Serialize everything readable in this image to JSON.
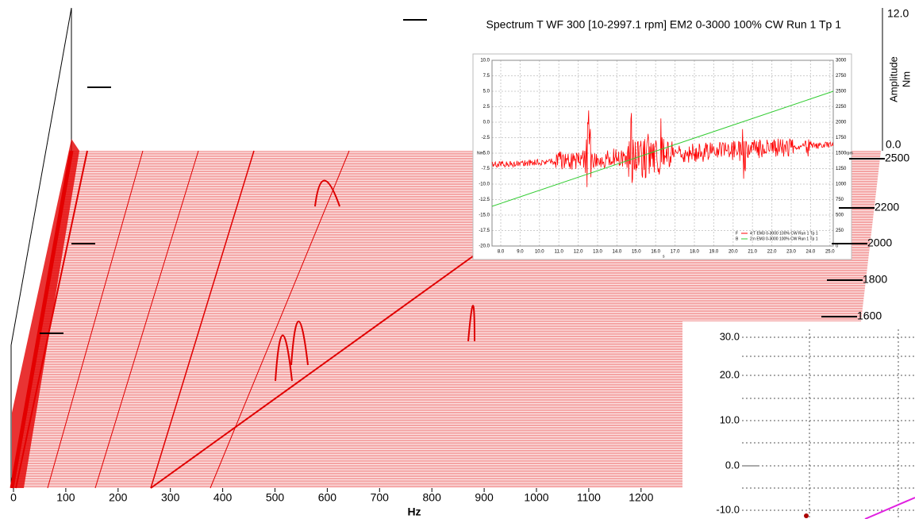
{
  "main_plot": {
    "title": "Spectrum T WF 300 [10-2997.1 rpm]  EM2 0-3000 100% CW Run 1 Tp 1",
    "x_axis_label": "Hz",
    "x_ticks": [
      "0",
      "100",
      "200",
      "300",
      "400",
      "500",
      "600",
      "700",
      "800",
      "900",
      "1000",
      "1100",
      "1200"
    ],
    "amplitude_label": "Amplitude",
    "amplitude_unit": "Nm",
    "amplitude_ticks": [
      "12.0",
      "0.0"
    ],
    "rpm_ticks": [
      "2500",
      "2200",
      "2000",
      "1800",
      "1600"
    ]
  },
  "inset_time": {
    "y_ticks": [
      "10.0",
      "7.5",
      "5.0",
      "2.5",
      "0.0",
      "-2.5",
      "-5.0",
      "-7.5",
      "-10.0",
      "-12.5",
      "-15.0",
      "-17.5",
      "-20.0"
    ],
    "y2_ticks": [
      "3000",
      "2750",
      "2500",
      "2250",
      "2000",
      "1750",
      "1500",
      "1250",
      "1000",
      "750",
      "500",
      "250",
      "0"
    ],
    "x_ticks": [
      "8.0",
      "9.0",
      "10.0",
      "11.0",
      "12.0",
      "13.0",
      "14.0",
      "15.0",
      "16.0",
      "17.0",
      "18.0",
      "19.0",
      "20.0",
      "21.0",
      "22.0",
      "23.0",
      "24.0",
      "25.0"
    ],
    "y_label": "Nm",
    "y2_label": "rpm",
    "x_label": "s",
    "legend": [
      {
        "marker": "F",
        "text": "4:T EM3 0-3000 100% CW Run 1 Tp 1"
      },
      {
        "marker": "B",
        "text": "2:n EM3 0-3000 100% CW Run 1 Tp 1"
      }
    ]
  },
  "inset_bottom": {
    "y_ticks": [
      "30.0",
      "20.0",
      "10.0",
      "0.0",
      "-10.0"
    ]
  }
}
